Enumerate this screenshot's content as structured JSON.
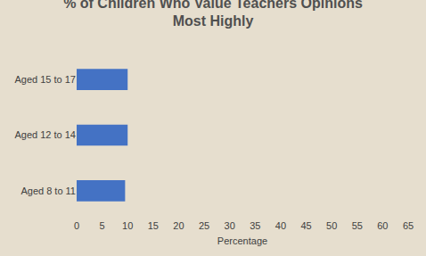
{
  "chart_data": {
    "type": "bar",
    "orientation": "horizontal",
    "title": "% of Children Who Value Teachers Opinions Most Highly",
    "x_label": "Percentage",
    "categories": [
      "Aged 8 to 11",
      "Aged 12 to 14",
      "Aged 15 to 17"
    ],
    "values": [
      9.5,
      10,
      10
    ],
    "color": "#4472c4",
    "xlim": [
      0,
      65
    ],
    "xticks": [
      0,
      5,
      10,
      15,
      20,
      25,
      30,
      35,
      40,
      45,
      50,
      55,
      60,
      65
    ],
    "grid": false,
    "data_labels": false
  }
}
